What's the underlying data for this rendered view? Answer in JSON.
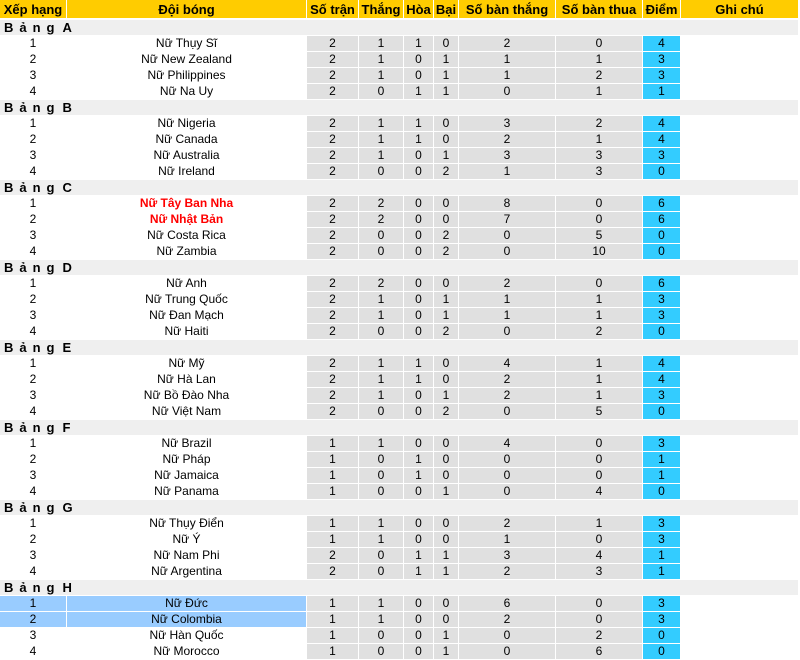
{
  "headers": [
    "Xếp hạng",
    "Đội bóng",
    "Số trận",
    "Thắng",
    "Hòa",
    "Bại",
    "Số bàn thắng",
    "Số bàn thua",
    "Điểm",
    "Ghi chú"
  ],
  "group_word": "Bảng",
  "colors": {
    "header": "#ffcc00",
    "points": "#33ccff",
    "highlight": "#99ccff",
    "qualified_text": "#ff0000"
  },
  "groups": [
    {
      "name": "A",
      "teams": [
        {
          "rank": "1",
          "team": "Nữ Thụy Sĩ",
          "p": "2",
          "w": "1",
          "d": "1",
          "l": "0",
          "gf": "2",
          "ga": "0",
          "pts": "4"
        },
        {
          "rank": "2",
          "team": "Nữ New Zealand",
          "p": "2",
          "w": "1",
          "d": "0",
          "l": "1",
          "gf": "1",
          "ga": "1",
          "pts": "3"
        },
        {
          "rank": "3",
          "team": "Nữ Philippines",
          "p": "2",
          "w": "1",
          "d": "0",
          "l": "1",
          "gf": "1",
          "ga": "2",
          "pts": "3"
        },
        {
          "rank": "4",
          "team": "Nữ Na Uy",
          "p": "2",
          "w": "0",
          "d": "1",
          "l": "1",
          "gf": "0",
          "ga": "1",
          "pts": "1"
        }
      ]
    },
    {
      "name": "B",
      "teams": [
        {
          "rank": "1",
          "team": "Nữ Nigeria",
          "p": "2",
          "w": "1",
          "d": "1",
          "l": "0",
          "gf": "3",
          "ga": "2",
          "pts": "4"
        },
        {
          "rank": "2",
          "team": "Nữ Canada",
          "p": "2",
          "w": "1",
          "d": "1",
          "l": "0",
          "gf": "2",
          "ga": "1",
          "pts": "4"
        },
        {
          "rank": "3",
          "team": "Nữ Australia",
          "p": "2",
          "w": "1",
          "d": "0",
          "l": "1",
          "gf": "3",
          "ga": "3",
          "pts": "3"
        },
        {
          "rank": "4",
          "team": "Nữ Ireland",
          "p": "2",
          "w": "0",
          "d": "0",
          "l": "2",
          "gf": "1",
          "ga": "3",
          "pts": "0"
        }
      ]
    },
    {
      "name": "C",
      "teams": [
        {
          "rank": "1",
          "team": "Nữ Tây Ban Nha",
          "p": "2",
          "w": "2",
          "d": "0",
          "l": "0",
          "gf": "8",
          "ga": "0",
          "pts": "6",
          "qualified": true
        },
        {
          "rank": "2",
          "team": "Nữ Nhật Bản",
          "p": "2",
          "w": "2",
          "d": "0",
          "l": "0",
          "gf": "7",
          "ga": "0",
          "pts": "6",
          "qualified": true
        },
        {
          "rank": "3",
          "team": "Nữ Costa Rica",
          "p": "2",
          "w": "0",
          "d": "0",
          "l": "2",
          "gf": "0",
          "ga": "5",
          "pts": "0"
        },
        {
          "rank": "4",
          "team": "Nữ Zambia",
          "p": "2",
          "w": "0",
          "d": "0",
          "l": "2",
          "gf": "0",
          "ga": "10",
          "pts": "0"
        }
      ]
    },
    {
      "name": "D",
      "teams": [
        {
          "rank": "1",
          "team": "Nữ Anh",
          "p": "2",
          "w": "2",
          "d": "0",
          "l": "0",
          "gf": "2",
          "ga": "0",
          "pts": "6"
        },
        {
          "rank": "2",
          "team": "Nữ Trung Quốc",
          "p": "2",
          "w": "1",
          "d": "0",
          "l": "1",
          "gf": "1",
          "ga": "1",
          "pts": "3"
        },
        {
          "rank": "3",
          "team": "Nữ Đan Mạch",
          "p": "2",
          "w": "1",
          "d": "0",
          "l": "1",
          "gf": "1",
          "ga": "1",
          "pts": "3"
        },
        {
          "rank": "4",
          "team": "Nữ Haiti",
          "p": "2",
          "w": "0",
          "d": "0",
          "l": "2",
          "gf": "0",
          "ga": "2",
          "pts": "0"
        }
      ]
    },
    {
      "name": "E",
      "teams": [
        {
          "rank": "1",
          "team": "Nữ Mỹ",
          "p": "2",
          "w": "1",
          "d": "1",
          "l": "0",
          "gf": "4",
          "ga": "1",
          "pts": "4"
        },
        {
          "rank": "2",
          "team": "Nữ Hà Lan",
          "p": "2",
          "w": "1",
          "d": "1",
          "l": "0",
          "gf": "2",
          "ga": "1",
          "pts": "4"
        },
        {
          "rank": "3",
          "team": "Nữ Bồ Đào Nha",
          "p": "2",
          "w": "1",
          "d": "0",
          "l": "1",
          "gf": "2",
          "ga": "1",
          "pts": "3"
        },
        {
          "rank": "4",
          "team": "Nữ Việt Nam",
          "p": "2",
          "w": "0",
          "d": "0",
          "l": "2",
          "gf": "0",
          "ga": "5",
          "pts": "0"
        }
      ]
    },
    {
      "name": "F",
      "teams": [
        {
          "rank": "1",
          "team": "Nữ Brazil",
          "p": "1",
          "w": "1",
          "d": "0",
          "l": "0",
          "gf": "4",
          "ga": "0",
          "pts": "3"
        },
        {
          "rank": "2",
          "team": "Nữ Pháp",
          "p": "1",
          "w": "0",
          "d": "1",
          "l": "0",
          "gf": "0",
          "ga": "0",
          "pts": "1"
        },
        {
          "rank": "3",
          "team": "Nữ Jamaica",
          "p": "1",
          "w": "0",
          "d": "1",
          "l": "0",
          "gf": "0",
          "ga": "0",
          "pts": "1"
        },
        {
          "rank": "4",
          "team": "Nữ Panama",
          "p": "1",
          "w": "0",
          "d": "0",
          "l": "1",
          "gf": "0",
          "ga": "4",
          "pts": "0"
        }
      ]
    },
    {
      "name": "G",
      "teams": [
        {
          "rank": "1",
          "team": "Nữ Thụy Điển",
          "p": "1",
          "w": "1",
          "d": "0",
          "l": "0",
          "gf": "2",
          "ga": "1",
          "pts": "3"
        },
        {
          "rank": "2",
          "team": "Nữ Ý",
          "p": "1",
          "w": "1",
          "d": "0",
          "l": "0",
          "gf": "1",
          "ga": "0",
          "pts": "3"
        },
        {
          "rank": "3",
          "team": "Nữ Nam Phi",
          "p": "2",
          "w": "0",
          "d": "1",
          "l": "1",
          "gf": "3",
          "ga": "4",
          "pts": "1"
        },
        {
          "rank": "4",
          "team": "Nữ Argentina",
          "p": "2",
          "w": "0",
          "d": "1",
          "l": "1",
          "gf": "2",
          "ga": "3",
          "pts": "1"
        }
      ]
    },
    {
      "name": "H",
      "teams": [
        {
          "rank": "1",
          "team": "Nữ Đức",
          "p": "1",
          "w": "1",
          "d": "0",
          "l": "0",
          "gf": "6",
          "ga": "0",
          "pts": "3",
          "highlight": true
        },
        {
          "rank": "2",
          "team": "Nữ Colombia",
          "p": "1",
          "w": "1",
          "d": "0",
          "l": "0",
          "gf": "2",
          "ga": "0",
          "pts": "3",
          "highlight": true
        },
        {
          "rank": "3",
          "team": "Nữ Hàn Quốc",
          "p": "1",
          "w": "0",
          "d": "0",
          "l": "1",
          "gf": "0",
          "ga": "2",
          "pts": "0"
        },
        {
          "rank": "4",
          "team": "Nữ Morocco",
          "p": "1",
          "w": "0",
          "d": "0",
          "l": "1",
          "gf": "0",
          "ga": "6",
          "pts": "0"
        }
      ]
    }
  ]
}
